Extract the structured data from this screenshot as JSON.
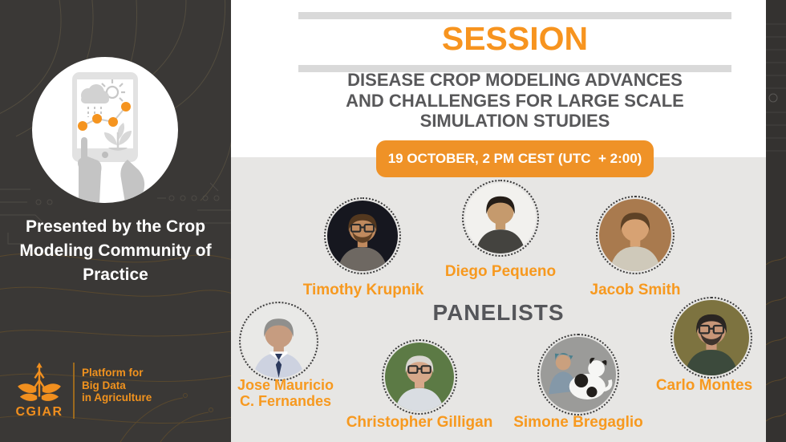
{
  "left_panel": {
    "presented_by": "Presented by the Crop Modeling Community of Practice",
    "logo": {
      "org": "CGIAR",
      "tagline_lines": [
        "Platform for",
        "Big Data",
        "in Agriculture"
      ]
    }
  },
  "header": {
    "session_label": "SESSION",
    "title_lines": [
      "DISEASE CROP MODELING ADVANCES",
      "AND CHALLENGES FOR LARGE SCALE",
      "SIMULATION STUDIES"
    ],
    "datetime_badge": "19 OCTOBER, 2 PM CEST (UTC  + 2:00)"
  },
  "panelists_heading": "PANELISTS",
  "panelists": [
    {
      "name": "Timothy Krupnik",
      "photo": {
        "bg": "#16171f",
        "skin": "#c08a5e",
        "hair": "#53381f",
        "shirt": "#6e6862",
        "features": [
          "glasses",
          "beard"
        ]
      }
    },
    {
      "name": "Diego Pequeno",
      "photo": {
        "bg": "#f2f1ee",
        "skin": "#c59a6d",
        "hair": "#241d17",
        "shirt": "#44433f",
        "features": []
      }
    },
    {
      "name": "Jacob Smith",
      "photo": {
        "bg": "#a97a4e",
        "skin": "#d7a273",
        "hair": "#5e4226",
        "shirt": "#cfc9ba",
        "features": []
      }
    },
    {
      "name": "Jose Mauricio C. Fernandes",
      "photo": {
        "bg": "#e9e9e7",
        "skin": "#c69c80",
        "hair": "#8f8f8d",
        "shirt": "#cdd2e0",
        "tie": "#2c3a5e",
        "features": [
          "tie"
        ]
      }
    },
    {
      "name": "Christopher Gilligan",
      "photo": {
        "bg": "#5c7a45",
        "skin": "#d7a88a",
        "hair": "#d9d6d1",
        "shirt": "#d9dde2",
        "features": [
          "glasses"
        ]
      }
    },
    {
      "name": "Simone Bregaglio",
      "photo": {
        "bg": "#9b9b99",
        "skin": "#caa07e",
        "hair": "#c9c2b8",
        "shirt": "#8498a8",
        "features": [
          "dog"
        ]
      }
    },
    {
      "name": "Carlo Montes",
      "photo": {
        "bg": "#7d7340",
        "skin": "#c79678",
        "hair": "#2a2522",
        "shirt": "#3c4a3c",
        "features": [
          "glasses",
          "beard"
        ]
      }
    }
  ],
  "colors": {
    "accent_orange": "#F7941F",
    "badge_orange": "#EF9227",
    "title_gray": "#58585A",
    "left_panel_dark": "#3A3836",
    "content_gray": "#E7E6E4",
    "bar_gray": "#D9D9D9"
  }
}
